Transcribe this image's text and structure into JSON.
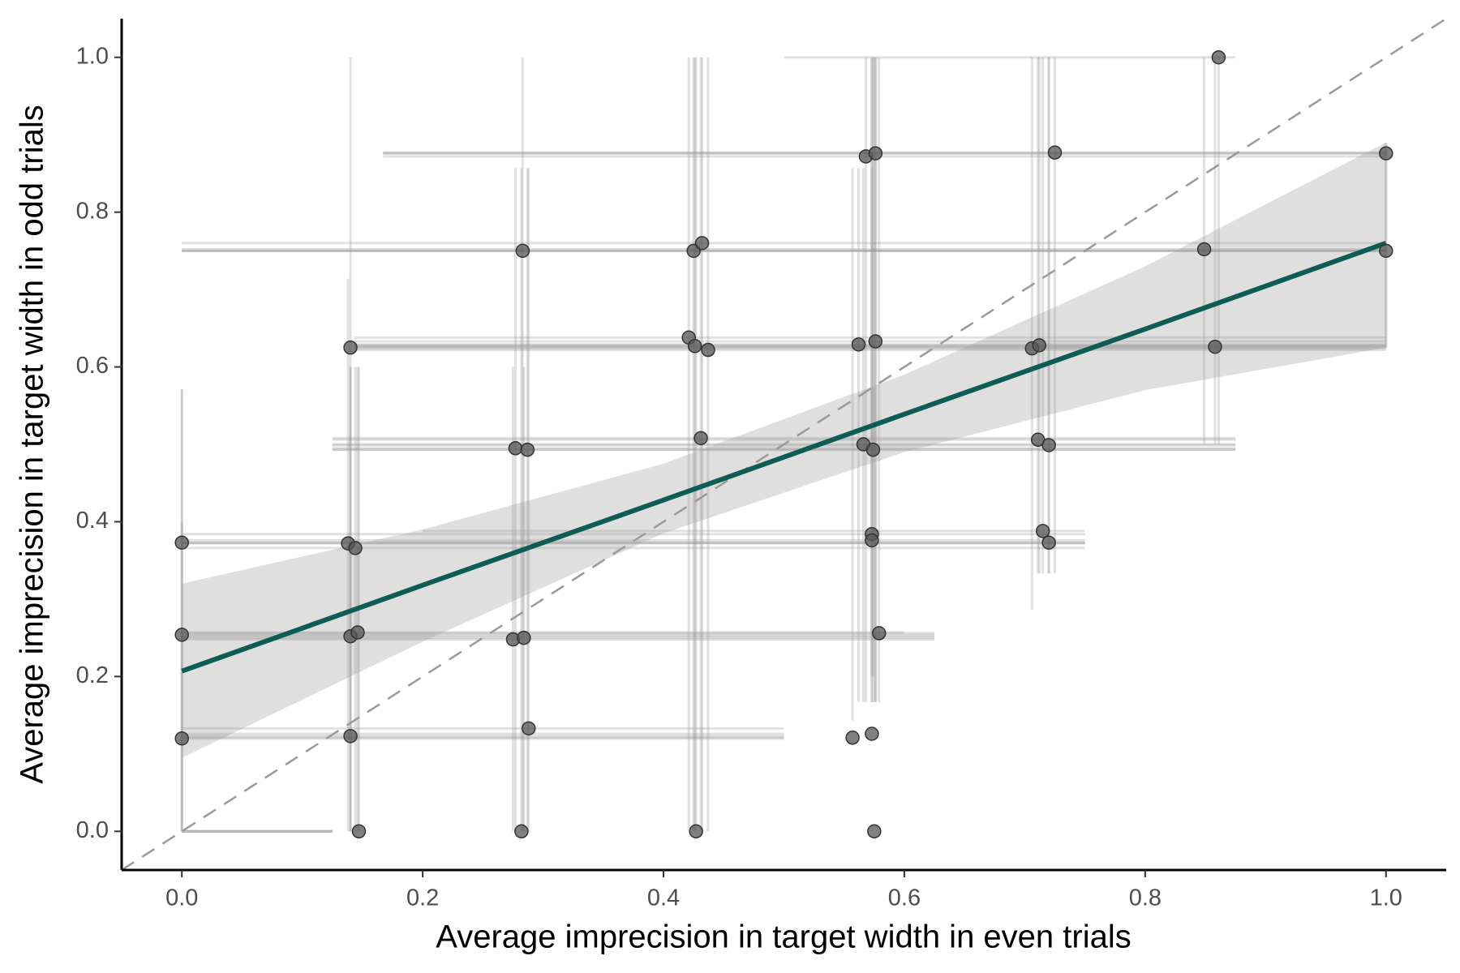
{
  "chart_data": {
    "type": "scatter",
    "x_label": "Average imprecision in target width in even trials",
    "y_label": "Average imprecision in target width in odd trials",
    "xlim": [
      -0.05,
      1.05
    ],
    "ylim": [
      -0.05,
      1.05
    ],
    "xticks": [
      {
        "value": 0,
        "label": "0.0"
      },
      0.2,
      0.4,
      0.6,
      0.8,
      {
        "value": 1,
        "label": "1.0"
      }
    ],
    "yticks": [
      {
        "value": 0,
        "label": "0.0"
      },
      0.2,
      0.4,
      0.6,
      0.8,
      {
        "value": 1,
        "label": "1.0"
      }
    ],
    "grid": false,
    "series": [
      {
        "color": "#555555",
        "errorbar_color": "#9a9a9a",
        "x": [
          0,
          0,
          0,
          0.14,
          0.138,
          0.144,
          0.14,
          0.146,
          0.14,
          0.147,
          0.283,
          0.277,
          0.287,
          0.275,
          0.284,
          0.288,
          0.282,
          0.425,
          0.432,
          0.421,
          0.426,
          0.437,
          0.431,
          0.427,
          0.568,
          0.576,
          0.562,
          0.576,
          0.566,
          0.574,
          0.573,
          0.573,
          0.579,
          0.557,
          0.573,
          0.575,
          0.725,
          0.706,
          0.712,
          0.711,
          0.72,
          0.715,
          0.72,
          0.849,
          0.861,
          0.858,
          1,
          1
        ],
        "y": [
          0.373,
          0.254,
          0.12,
          0.625,
          0.372,
          0.366,
          0.252,
          0.257,
          0.123,
          0,
          0.75,
          0.495,
          0.493,
          0.248,
          0.25,
          0.133,
          0,
          0.75,
          0.76,
          0.638,
          0.627,
          0.622,
          0.508,
          0,
          0.872,
          0.876,
          0.629,
          0.633,
          0.5,
          0.493,
          0.384,
          0.376,
          0.256,
          0.121,
          0.126,
          0,
          0.877,
          0.624,
          0.628,
          0.506,
          0.499,
          0.388,
          0.373,
          0.752,
          1,
          0.626,
          0.876,
          0.75
        ],
        "x_low": [
          0,
          0,
          0,
          0.143,
          0,
          0,
          0,
          0,
          0,
          0,
          0,
          0.125,
          0.125,
          0,
          0,
          0,
          0,
          0,
          0,
          0.143,
          0.143,
          0.143,
          0.125,
          0,
          0.167,
          0.167,
          0.143,
          0.143,
          0.125,
          0.125,
          0,
          0,
          0,
          0,
          0,
          0,
          0.167,
          0.143,
          0.143,
          0.125,
          0.125,
          0.2,
          0,
          0,
          0.5,
          0.143,
          0.167,
          0
        ],
        "x_high": [
          0.75,
          0.625,
          0.5,
          1,
          0.75,
          0.75,
          0.625,
          0.6,
          0.5,
          0.125,
          1,
          0.875,
          0.875,
          0.625,
          0.625,
          0.5,
          0.125,
          1,
          1,
          1,
          1,
          1,
          0.875,
          0.125,
          1,
          1,
          1,
          1,
          0.875,
          0.875,
          0.75,
          0.75,
          0.625,
          0.5,
          0.5,
          0.125,
          1,
          1,
          1,
          0.875,
          0.875,
          0.75,
          0.75,
          1,
          0.875,
          1,
          1,
          1
        ],
        "y_low": [
          0,
          0,
          0,
          0,
          0,
          0,
          0,
          0,
          0,
          0,
          0,
          0,
          0,
          0,
          0,
          0,
          0,
          0,
          0,
          0,
          0,
          0,
          0,
          0,
          0.167,
          0.167,
          0.167,
          0.167,
          0.167,
          0.2,
          0.167,
          0.2,
          0.167,
          0.143,
          0.167,
          0.167,
          0.333,
          0.286,
          0.333,
          0.333,
          0.333,
          0.333,
          0.333,
          0.5,
          0.5,
          0.5,
          0.625,
          0.625
        ],
        "y_high": [
          0.571,
          0.4,
          0.571,
          1,
          0.714,
          0.6,
          0.6,
          0.6,
          0.6,
          0.6,
          1,
          0.857,
          0.857,
          0.6,
          0.6,
          0.857,
          0.857,
          1,
          1,
          1,
          1,
          1,
          1,
          1,
          1,
          1,
          0.857,
          1,
          0.857,
          1,
          1,
          0.857,
          1,
          0.857,
          1,
          1,
          1,
          1,
          1,
          1,
          1,
          1,
          1,
          1,
          1,
          1,
          0.889,
          0.889
        ]
      }
    ],
    "fit": {
      "color": "#0f5c55",
      "band_color": "#d9d9d9",
      "x": [
        0,
        0.2,
        0.4,
        0.6,
        0.8,
        1
      ],
      "y": [
        0.207,
        0.318,
        0.428,
        0.539,
        0.649,
        0.76
      ],
      "lower": [
        0.095,
        0.245,
        0.385,
        0.49,
        0.57,
        0.625
      ],
      "upper": [
        0.32,
        0.39,
        0.475,
        0.59,
        0.73,
        0.89
      ]
    },
    "identity_line": {
      "color": "#9a9a9a",
      "dashed": true
    }
  }
}
